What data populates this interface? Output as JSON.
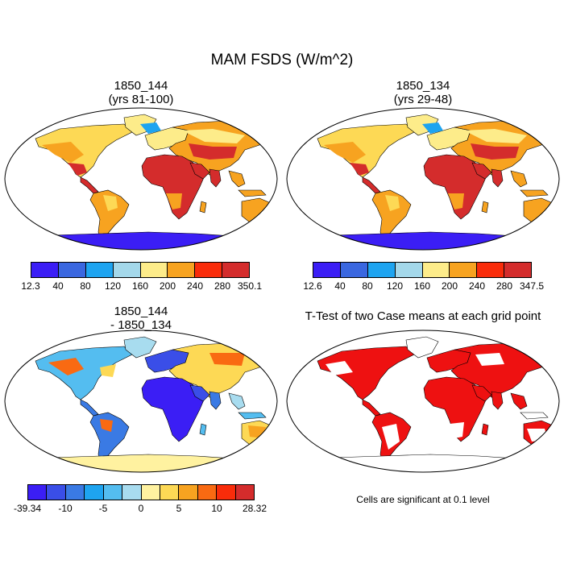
{
  "title": "MAM FSDS (W/m^2)",
  "panels": [
    {
      "id": "p1",
      "line1": "1850_144",
      "line2": "(yrs 81-100)",
      "kind": "abs"
    },
    {
      "id": "p2",
      "line1": "1850_134",
      "line2": "(yrs 29-48)",
      "kind": "abs"
    },
    {
      "id": "p3",
      "line1": "1850_144",
      "line2": "- 1850_134",
      "kind": "diff"
    },
    {
      "id": "p4",
      "line1": "T-Test of two Case means at each grid point",
      "line2": "",
      "kind": "ttest"
    }
  ],
  "colorbars": {
    "abs1": {
      "colors": [
        "#3b1ef5",
        "#3a67e0",
        "#1ea4f0",
        "#a4d8ea",
        "#fdec8a",
        "#f7a320",
        "#f92c0a",
        "#d42c2c"
      ],
      "labels": [
        "12.3",
        "40",
        "80",
        "120",
        "160",
        "200",
        "240",
        "280",
        "350.1"
      ]
    },
    "abs2": {
      "colors": [
        "#3b1ef5",
        "#3a67e0",
        "#1ea4f0",
        "#a4d8ea",
        "#fdec8a",
        "#f7a320",
        "#f92c0a",
        "#d42c2c"
      ],
      "labels": [
        "12.6",
        "40",
        "80",
        "120",
        "160",
        "200",
        "240",
        "280",
        "347.5"
      ]
    },
    "diff": {
      "colors": [
        "#3b1ef5",
        "#3a4ee8",
        "#3a7ae4",
        "#1ea4f0",
        "#54bdf0",
        "#a8dcef",
        "#fff2a0",
        "#fdd955",
        "#f7a320",
        "#f96a12",
        "#f92c0a",
        "#d42c2c"
      ],
      "labels": [
        "-39.34",
        "-10",
        "-5",
        "0",
        "5",
        "10",
        "28.32"
      ]
    }
  },
  "significance_note": "Cells are significant at 0.1 level"
}
